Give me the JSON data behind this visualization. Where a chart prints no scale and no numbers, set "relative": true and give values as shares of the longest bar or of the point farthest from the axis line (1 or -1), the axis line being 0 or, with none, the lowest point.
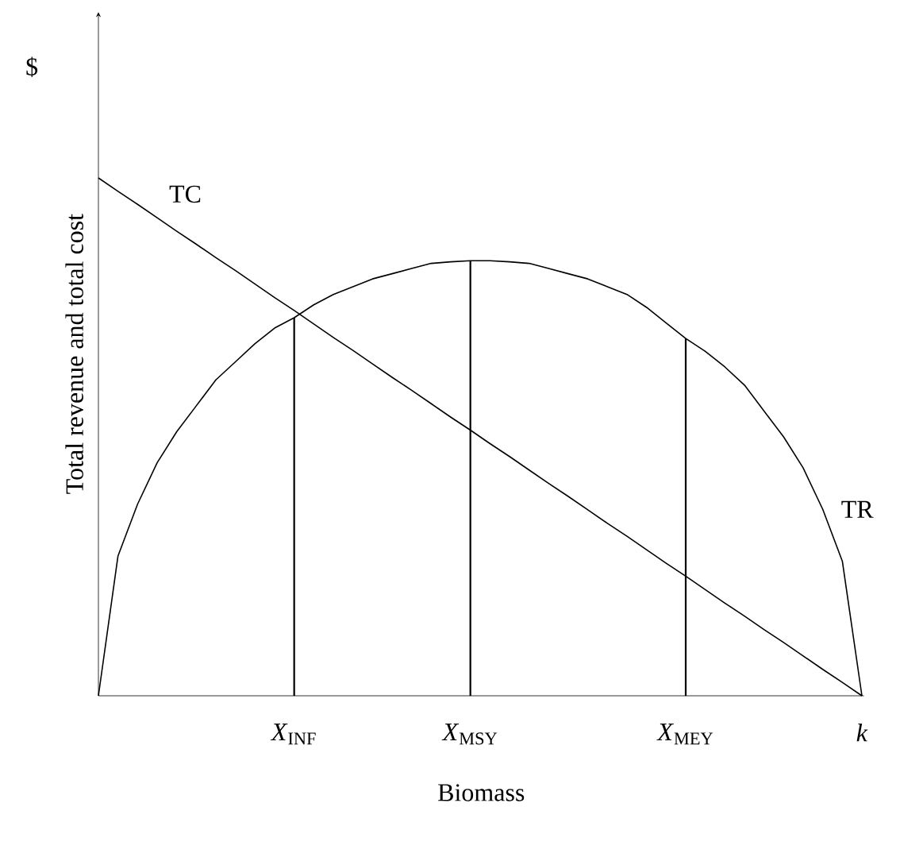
{
  "chart_data": {
    "type": "line",
    "relative": true,
    "xlabel": "Biomass",
    "ylabel": "Total revenue and total cost",
    "marker": "none",
    "line_style": "solid",
    "categories": [
      null,
      null,
      null,
      null,
      null,
      null,
      null,
      null,
      null,
      null,
      "*X*$_{INF}$",
      null,
      null,
      null,
      null,
      null,
      null,
      null,
      null,
      "*X*$_{MSY}$",
      null,
      null,
      null,
      null,
      null,
      null,
      null,
      null,
      null,
      null,
      "*X*$_{MEY}$",
      null,
      null,
      null,
      null,
      null,
      null,
      null,
      null,
      "*k*"
    ],
    "series": [
      {
        "name": "TR",
        "color": "#000000",
        "values": [
          0,
          0.27,
          0.37,
          0.45,
          0.51,
          0.56,
          0.61,
          0.645,
          0.68,
          0.71,
          0.73,
          0.755,
          0.775,
          0.79,
          0.805,
          0.815,
          0.825,
          0.835,
          0.838,
          0.84,
          0.84,
          0.838,
          0.835,
          0.825,
          0.815,
          0.805,
          0.79,
          0.775,
          0.75,
          0.72,
          0.69,
          0.665,
          0.635,
          0.6,
          0.55,
          0.5,
          0.44,
          0.36,
          0.26,
          0
        ]
      },
      {
        "name": "TC",
        "color": "#000000",
        "values": [
          1,
          0.974,
          0.949,
          0.923,
          0.897,
          0.872,
          0.846,
          0.821,
          0.795,
          0.769,
          0.744,
          0.718,
          0.692,
          0.667,
          0.641,
          0.615,
          0.59,
          0.564,
          0.538,
          0.513,
          0.487,
          0.462,
          0.436,
          0.41,
          0.385,
          0.359,
          0.333,
          0.308,
          0.282,
          0.256,
          0.231,
          0.205,
          0.179,
          0.154,
          0.128,
          0.103,
          0.077,
          0.051,
          0.026,
          0
        ]
      },
      {
        "type": "bar",
        "color": "#000000",
        "values": [
          null,
          null,
          null,
          null,
          null,
          null,
          null,
          null,
          null,
          null,
          0.73,
          null,
          null,
          null,
          null,
          null,
          null,
          null,
          null,
          0.84,
          null,
          null,
          null,
          null,
          null,
          null,
          null,
          null,
          null,
          null,
          0.69,
          null,
          null,
          null,
          null,
          null,
          null,
          null,
          null,
          null
        ]
      }
    ],
    "annotations": [
      "$"
    ]
  }
}
